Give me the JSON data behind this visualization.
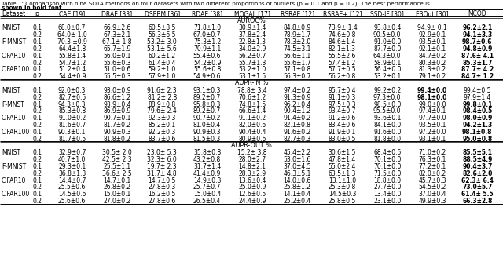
{
  "title_line1": "Table 1: Comparison with nine SOTA methods on four datasets with two different proportions of outliers (p = 0.1 and p = 0.2). The best performance is",
  "title_line2": "shown in bold font.",
  "header_cols": [
    "Dataset",
    "p",
    "CAE [19]",
    "DRAE [33]",
    "DSEBM [36]",
    "RDAE [38]",
    "MOGAL [17]",
    "RSRAE [12]",
    "RSRAE+ [12]",
    "SSD-IF [30]",
    "E3Out [30]",
    "MCOD"
  ],
  "sections": [
    {
      "name": "AUROC%",
      "rows": [
        [
          "MNIST",
          "0.1",
          "68.0±0.7",
          "66.9±2.6",
          "60.5±8.5",
          "71.8±1.0",
          "30.9±1.4",
          "84.8±0.9",
          "73.9± 1.4",
          "93.8±0.4",
          "94.9± 0.1",
          "96.2±2.1"
        ],
        [
          "",
          "0.2",
          "64.0± 1.0",
          "67.3±2.1",
          "56.3±6.5",
          "67.0±0.7",
          "37.8±2.4",
          "78.9±1.7",
          "74.6±0.8",
          "90.5±0.0",
          "92.9±0.1",
          "94.1±3.3"
        ],
        [
          "F-MNIST",
          "0.1",
          "70.3 ±0.9",
          "67.1± 1.8",
          "53.2± 3.0",
          "75.3±1.2",
          "22.8±1.3",
          "78.3±2.0",
          "84.6±1.4",
          "91.0±0.0",
          "93.5±0.1",
          "98.7±0.6"
        ],
        [
          "",
          "0.2",
          "64.4±1.8",
          "65.7±1.9",
          "53.1± 5.6",
          "70.9±1.1",
          "34.0±2.9",
          "74.5±3.1",
          "82.1±1.3",
          "87.7±0.0",
          "92.1±0.1",
          "94.8±0.9"
        ],
        [
          "CIFAR10",
          "0.1",
          "55.8±1.4",
          "56.0±0.1",
          "60.2±1.2",
          "55.4±0.6",
          "56.2±0.7",
          "56.6±1.1",
          "55.5±2.6",
          "64.3±0.0",
          "84.7±0.2",
          "87.6± 4.1"
        ],
        [
          "",
          "0.2",
          "54.7±1.2",
          "55.6±0.3",
          "61.4±0.4",
          "54.2±0.9",
          "55.7±1.3",
          "55.6±1.7",
          "57.4±1.2",
          "58.9±0.1",
          "80.3±0.2",
          "85.3±1.7"
        ],
        [
          "CIFAR100",
          "0.1",
          "51.2±0.4",
          "51.0±0.6",
          "59.2±1.0",
          "55.6±0.8",
          "53.2±1.0",
          "57.1±0.8",
          "57.7±0.5",
          "56.4±0.0",
          "81.3±0.2",
          "87.7± 4.2"
        ],
        [
          "",
          "0.2",
          "54.4±0.9",
          "55.5±0.3",
          "57.9±1.0",
          "54.9±0.6",
          "53.1±1.5",
          "56.3±0.7",
          "56.2±0.8",
          "53.2±0.1",
          "79.1±0.2",
          "84.7± 1.2"
        ]
      ],
      "bold": [
        [
          0,
          0,
          0,
          0,
          0,
          0,
          0,
          0,
          0,
          0,
          0,
          1
        ],
        [
          0,
          0,
          0,
          0,
          0,
          0,
          0,
          0,
          0,
          0,
          0,
          1
        ],
        [
          0,
          0,
          0,
          0,
          0,
          0,
          0,
          0,
          0,
          0,
          0,
          1
        ],
        [
          0,
          0,
          0,
          0,
          0,
          0,
          0,
          0,
          0,
          0,
          0,
          1
        ],
        [
          0,
          0,
          0,
          0,
          0,
          0,
          0,
          0,
          0,
          0,
          0,
          1
        ],
        [
          0,
          0,
          0,
          0,
          0,
          0,
          0,
          0,
          0,
          0,
          0,
          1
        ],
        [
          0,
          0,
          0,
          0,
          0,
          0,
          0,
          0,
          0,
          0,
          0,
          1
        ],
        [
          0,
          0,
          0,
          0,
          0,
          0,
          0,
          0,
          0,
          0,
          0,
          1
        ]
      ]
    },
    {
      "name": "AUPR-IN %",
      "rows": [
        [
          "MNIST",
          "0.1",
          "92.0±0.3",
          "93.0±0.9",
          "91.6± 2.3",
          "93.1±0.3",
          "78.8± 3.4",
          "97.4±0.2",
          "95.7±0.4",
          "99.2±0.2",
          "99.4±0.0",
          "99.4±0.5"
        ],
        [
          "",
          "0.2",
          "82.7±0.5",
          "86.6±1.2",
          "81.2± 2.8",
          "89.2±0.7",
          "70.6±1.2",
          "91.3±0.9",
          "91.1±0.3",
          "97.3±0.0",
          "98.1±0.0",
          "97.9±1.4"
        ],
        [
          "F-MNST",
          "0.1",
          "94.3±0.3",
          "93.9±0.4",
          "88.9±0.8",
          "95.8±0.3",
          "74.8±1.5",
          "96.2±0.4",
          "97.5±0.3",
          "98.5±0.0",
          "99.0±0.0",
          "99.8±0.1"
        ],
        [
          "",
          "0.2",
          "85.3±0.8",
          "86.9±0.9",
          "79.6± 2.4",
          "89.2±0.7",
          "66.6±1.4",
          "90.4±1.2",
          "93.4±0.7",
          "95.5±0.0",
          "97.4±0.1",
          "98.4±0.5"
        ],
        [
          "CIFAR10",
          "0.1",
          "91.0±0.2",
          "90.7±0.1",
          "92.3±0.3",
          "90.7±0.2",
          "91.1±0.2",
          "91.4±0.2",
          "91.2±0.6",
          "93.6±0.1",
          "97.7±0.0",
          "98.0±0.9"
        ],
        [
          "",
          "0.2",
          "81.6±0.7",
          "81.7±0.2",
          "85.2±0.1",
          "81.0±0.4",
          "82.0±0.6",
          "82.1±0.8",
          "83.4±0.6",
          "84.1±0.0",
          "93.5±0.1",
          "94.2±1.3"
        ],
        [
          "CIFAR100",
          "0.1",
          "90.3±0.1",
          "90.9±0.3",
          "92.2±0.3",
          "90.9±0.3",
          "90.4±0.4",
          "91.6±0.2",
          "91.9±0.1",
          "91.6±0.0",
          "97.2±0.0",
          "98.1±0.8"
        ],
        [
          "",
          "0.2",
          "81.7±0.5",
          "81.8±0.2",
          "83.7±0.6",
          "81.5±0.3",
          "80.9±0.6",
          "82.7±0.3",
          "83.0±0.5",
          "81.8±0.0",
          "93.1±0.1",
          "95.0±0.8"
        ]
      ],
      "bold": [
        [
          0,
          0,
          0,
          0,
          0,
          0,
          0,
          0,
          0,
          0,
          1,
          0
        ],
        [
          0,
          0,
          0,
          0,
          0,
          0,
          0,
          0,
          0,
          0,
          1,
          0
        ],
        [
          0,
          0,
          0,
          0,
          0,
          0,
          0,
          0,
          0,
          0,
          0,
          1
        ],
        [
          0,
          0,
          0,
          0,
          0,
          0,
          0,
          0,
          0,
          0,
          0,
          1
        ],
        [
          0,
          0,
          0,
          0,
          0,
          0,
          0,
          0,
          0,
          0,
          0,
          1
        ],
        [
          0,
          0,
          0,
          0,
          0,
          0,
          0,
          0,
          0,
          0,
          0,
          1
        ],
        [
          0,
          0,
          0,
          0,
          0,
          0,
          0,
          0,
          0,
          0,
          0,
          1
        ],
        [
          0,
          0,
          0,
          0,
          0,
          0,
          0,
          0,
          0,
          0,
          0,
          1
        ]
      ]
    },
    {
      "name": "AUPR-OUT %",
      "rows": [
        [
          "MNIST",
          "0.1",
          "32.9±0.7",
          "30.5± 2.0",
          "23.0± 5.3",
          "35.8±0.8",
          "15.2± 3.8",
          "45.4±2.2",
          "30.6±1.5",
          "68.4±0.5",
          "71.0±0.2",
          "85.5±5.1"
        ],
        [
          "",
          "0.2",
          "40.7±1.0",
          "42.5± 2.3",
          "32.3± 6.0",
          "43.2±0.8",
          "28.0±2.7",
          "53.0±1.6",
          "47.8±1.4",
          "70.1±0.0",
          "76.3±0.1",
          "88.5±4.9"
        ],
        [
          "F-MNIST",
          "0.1",
          "29.3±0.1",
          "25.5±1.1",
          "19.7± 2.3",
          "31.7±1.4",
          "14.8±2.1",
          "37.0±4.5",
          "55.0±2.4",
          "70.1±0.0",
          "77.2±0.1",
          "90.4±3.7"
        ],
        [
          "",
          "0.2",
          "36.8±1.3",
          "36.6± 2.5",
          "31.7± 4.8",
          "41.4±0.9",
          "28.3±2.9",
          "46.3±5.1",
          "63.5±1.3",
          "71.5±0.0",
          "82.0±0.2",
          "82.6±2.0"
        ],
        [
          "CIFAR10",
          "0.1",
          "14.4±0.7",
          "14.7±0.1",
          "14.7±0.5",
          "14.9±0.3",
          "13.6±0.4",
          "14.0±0.6",
          "13.1±1.0",
          "18.8±0.0",
          "45.7±0.3",
          "62.3± 6.4"
        ],
        [
          "",
          "0.2",
          "25.5±0.6",
          "26.8±0.2",
          "27.8±0.3",
          "25.7±0.7",
          "25.0±0.9",
          "25.8±1.2",
          "25.3±0.8",
          "27.7±0.0",
          "54.5±0.2",
          "73.0±5.7"
        ],
        [
          "CIFAR100",
          "0.1",
          "14.5±0.6",
          "15.0±0.1",
          "16.2±0.5",
          "15.0±0.4",
          "12.6±0.5",
          "14.1±0.4",
          "14.5±0.3",
          "13.4±0.0",
          "37.0±0.4",
          "61.4± 5.5"
        ],
        [
          "",
          "0.2",
          "25.6±0.6",
          "27.0±0.2",
          "27.8±0.6",
          "26.5±0.4",
          "24.4±0.9",
          "25.2±0.4",
          "25.8±0.5",
          "23.1±0.0",
          "49.9±0.3",
          "66.3±2.8"
        ]
      ],
      "bold": [
        [
          0,
          0,
          0,
          0,
          0,
          0,
          0,
          0,
          0,
          0,
          0,
          1
        ],
        [
          0,
          0,
          0,
          0,
          0,
          0,
          0,
          0,
          0,
          0,
          0,
          1
        ],
        [
          0,
          0,
          0,
          0,
          0,
          0,
          0,
          0,
          0,
          0,
          0,
          1
        ],
        [
          0,
          0,
          0,
          0,
          0,
          0,
          0,
          0,
          0,
          0,
          0,
          1
        ],
        [
          0,
          0,
          0,
          0,
          0,
          0,
          0,
          0,
          0,
          0,
          0,
          1
        ],
        [
          0,
          0,
          0,
          0,
          0,
          0,
          0,
          0,
          0,
          0,
          0,
          1
        ],
        [
          0,
          0,
          0,
          0,
          0,
          0,
          0,
          0,
          0,
          0,
          0,
          1
        ],
        [
          0,
          0,
          0,
          0,
          0,
          0,
          0,
          0,
          0,
          0,
          0,
          1
        ]
      ]
    }
  ],
  "bg_color": "#ffffff",
  "text_color": "#000000",
  "ref_colors": {
    "19": "#00aa00",
    "33": "#00aa00",
    "36": "#00aa00",
    "38": "#00aa00",
    "17": "#00aa00",
    "12": "#00aa00",
    "30": "#00aa00"
  }
}
